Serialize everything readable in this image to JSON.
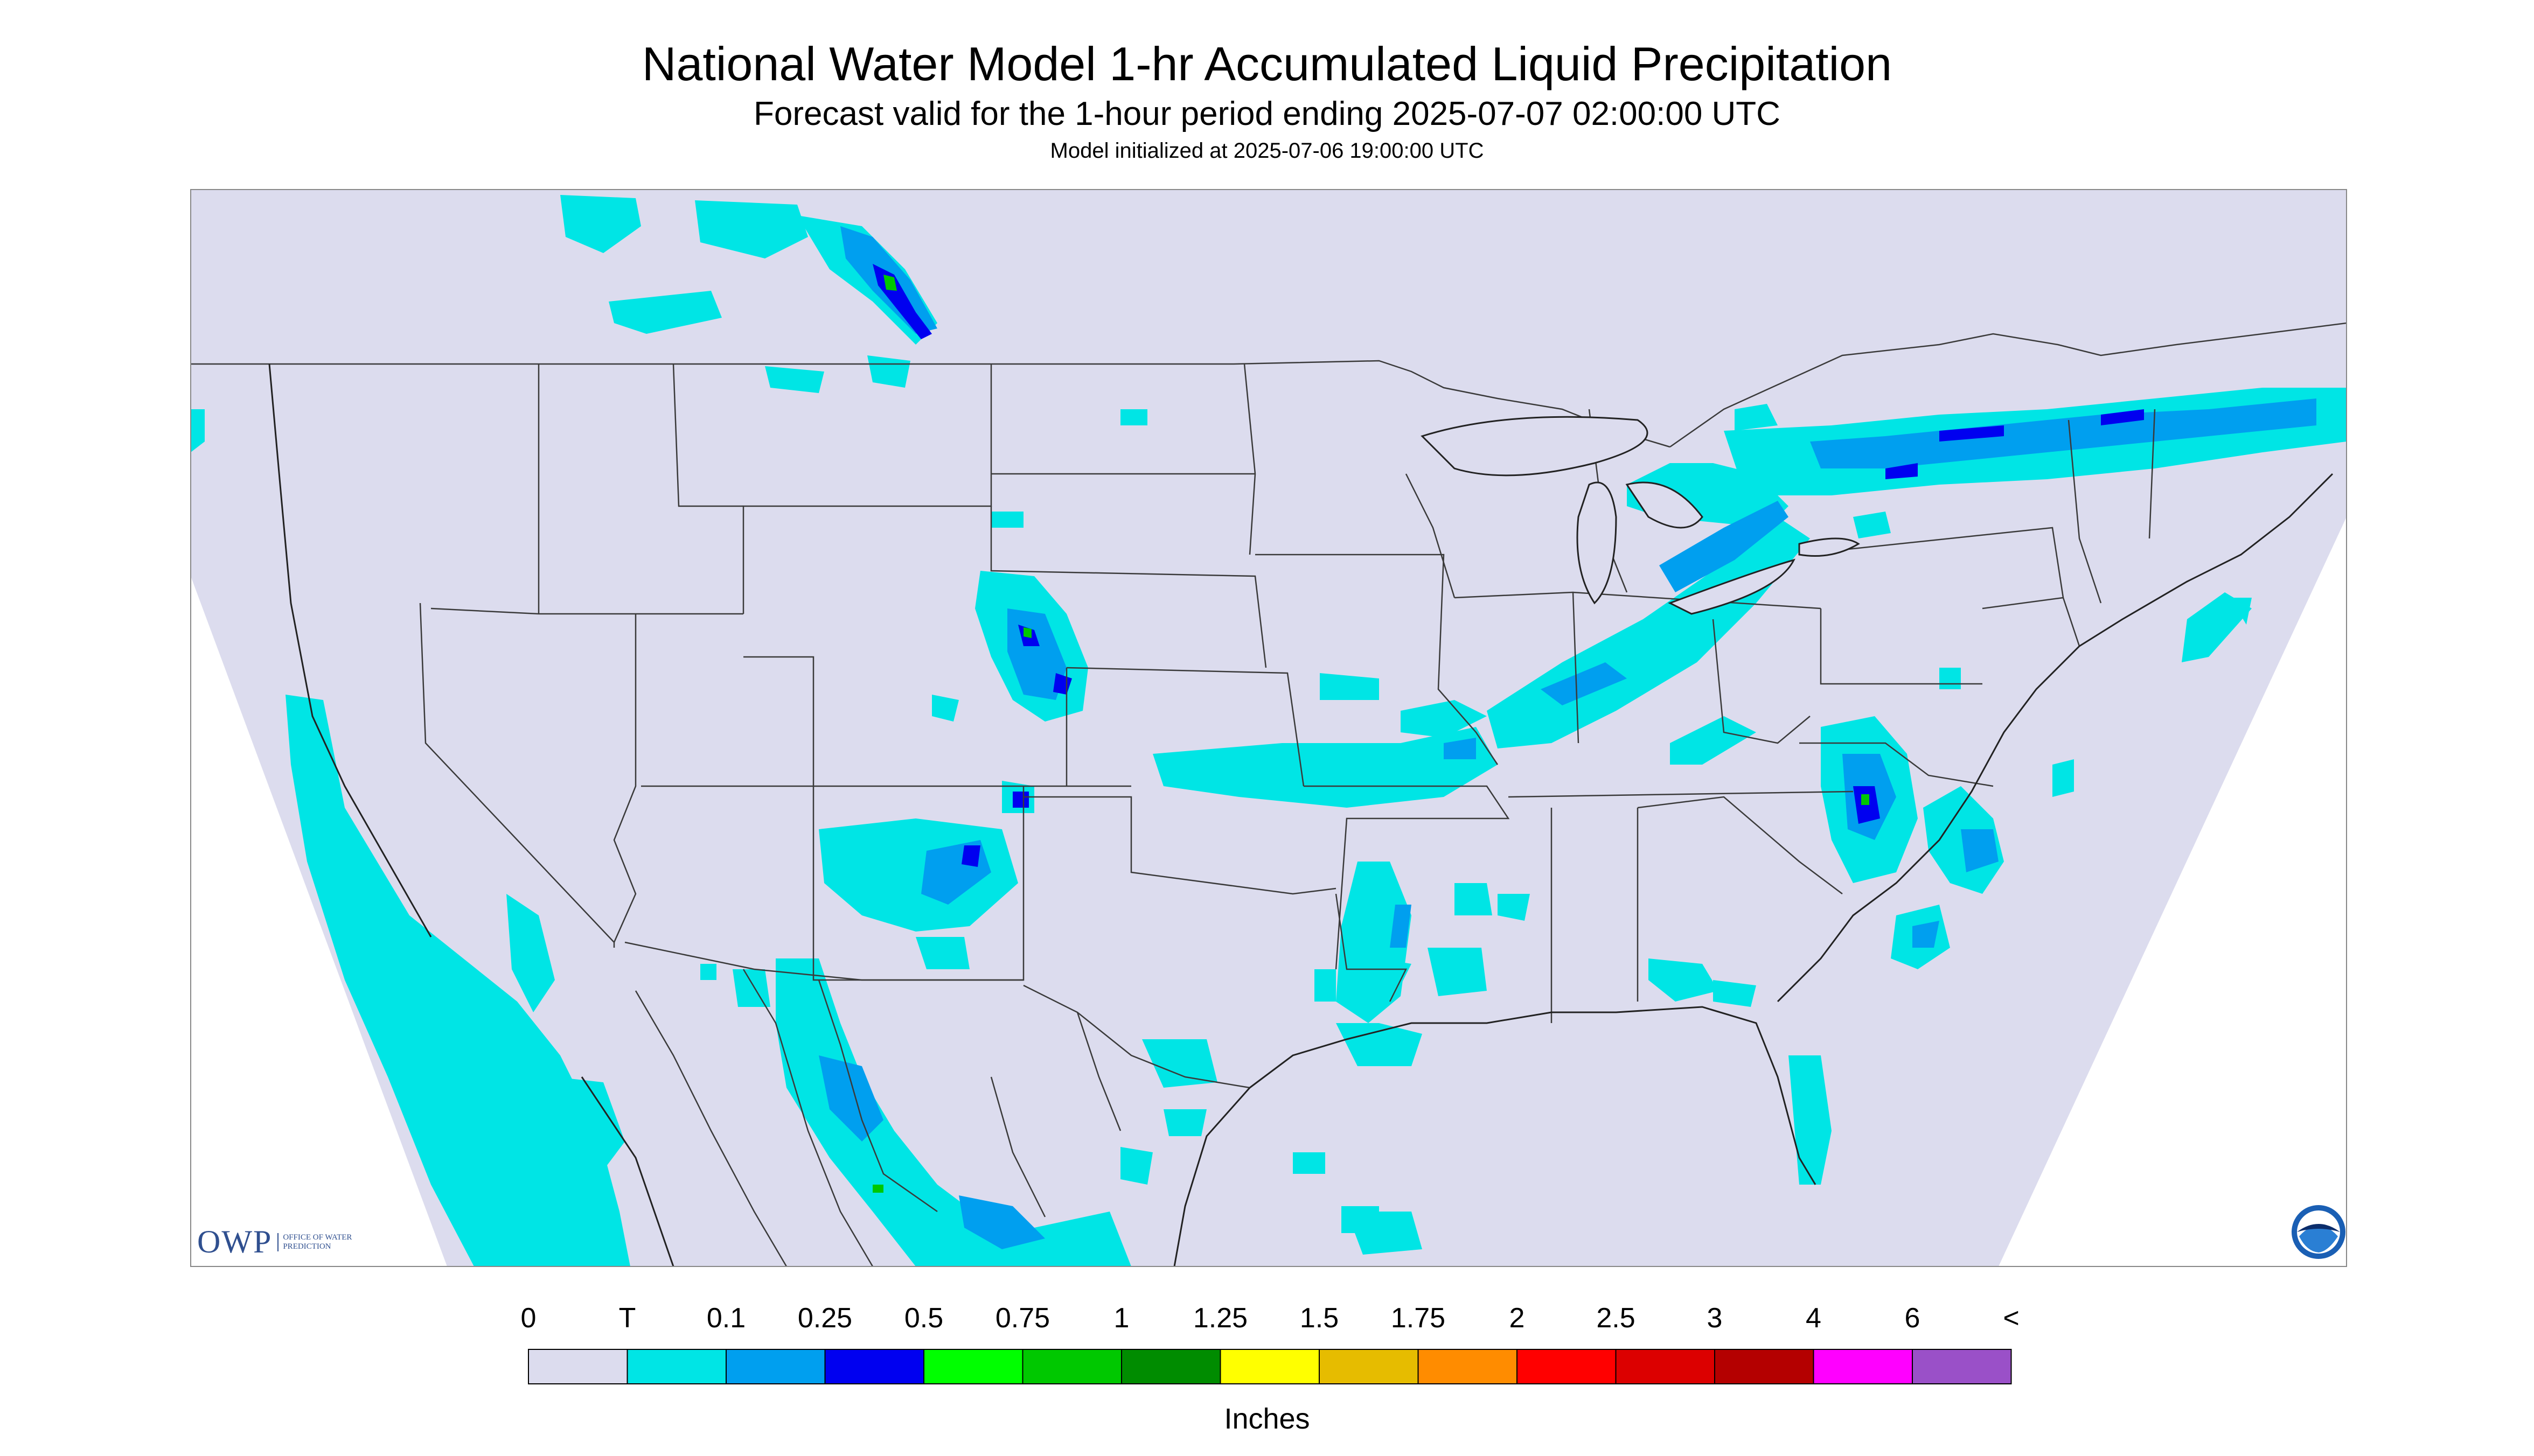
{
  "title": "National Water Model 1-hr Accumulated Liquid Precipitation",
  "subtitle": "Forecast valid for the 1-hour period ending 2025-07-07 02:00:00 UTC",
  "init": "Model initialized at 2025-07-06 19:00:00 UTC",
  "logos": {
    "owp": "OWP",
    "owp_sub": "OFFICE OF WATER PREDICTION",
    "noaa": "NOAA"
  },
  "legend": {
    "unit_label": "Inches",
    "labels": [
      "0",
      "T",
      "0.1",
      "0.25",
      "0.5",
      "0.75",
      "1",
      "1.25",
      "1.5",
      "1.75",
      "2",
      "2.5",
      "3",
      "4",
      "6",
      "<"
    ],
    "colors": [
      "#dcdcee",
      "#00e5e5",
      "#009fef",
      "#0000f0",
      "#00ff00",
      "#00c800",
      "#008c00",
      "#ffff00",
      "#e6bc00",
      "#ff8c00",
      "#ff0000",
      "#dc0000",
      "#b40000",
      "#ff00ff",
      "#9a50c8"
    ]
  },
  "colors": {
    "background_domain": "#dcdcee",
    "outside_domain": "#ffffff",
    "boundaries": "#3a3a3a"
  }
}
